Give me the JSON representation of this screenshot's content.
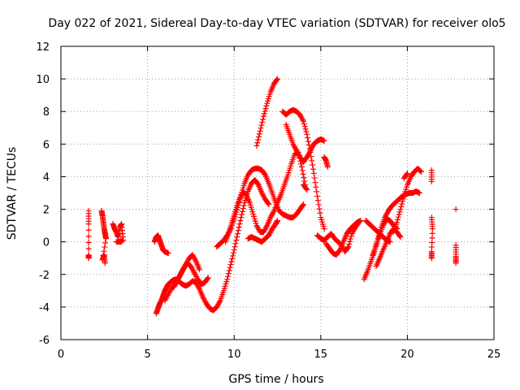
{
  "chart_data": {
    "type": "scatter",
    "title": "Day 022 of 2021, Sidereal Day-to-day VTEC variation (SDTVAR) for receiver olo5",
    "xlabel": "GPS time / hours",
    "ylabel": "SDTVAR / TECUs",
    "xlim": [
      0,
      25
    ],
    "ylim": [
      -6,
      12
    ],
    "x_ticks": [
      0,
      5,
      10,
      15,
      20,
      25
    ],
    "y_ticks": [
      -6,
      -4,
      -2,
      0,
      2,
      4,
      6,
      8,
      10,
      12
    ],
    "x_tick_labels": [
      "0",
      "5",
      "10",
      "15",
      "20",
      "25"
    ],
    "y_tick_labels": [
      "-6",
      "-4",
      "-2",
      "0",
      "2",
      "4",
      "6",
      "8",
      "10",
      "12"
    ],
    "grid": true,
    "marker": "+",
    "color": "#ff0000",
    "series": [
      {
        "name": "s1",
        "x": [
          1.6,
          1.6,
          1.6,
          1.6
        ],
        "y": [
          1.9,
          1.1,
          -0.8,
          -1.0
        ]
      },
      {
        "name": "s2",
        "x": [
          2.35,
          2.4,
          2.45,
          2.5,
          2.55,
          2.6,
          2.4,
          2.5,
          2.55
        ],
        "y": [
          1.9,
          1.6,
          1.2,
          0.8,
          0.5,
          0.2,
          -1.1,
          -0.8,
          -1.3
        ]
      },
      {
        "name": "s3",
        "x": [
          3.0,
          3.1,
          3.2,
          3.3,
          3.4,
          3.5,
          3.6,
          3.2,
          3.5
        ],
        "y": [
          1.1,
          0.8,
          0.6,
          0.3,
          0.9,
          1.1,
          0.1,
          0.0,
          0.0
        ]
      },
      {
        "name": "s4",
        "x": [
          5.4,
          5.5,
          5.6,
          5.7,
          5.8,
          5.9,
          6.0,
          6.2
        ],
        "y": [
          0.0,
          0.3,
          0.4,
          0.1,
          -0.2,
          -0.5,
          -0.6,
          -0.7
        ]
      },
      {
        "name": "s5",
        "x": [
          5.5,
          5.6,
          5.7,
          5.8,
          5.9,
          6.0,
          6.1,
          6.2,
          6.4,
          6.6,
          6.8,
          7.0,
          7.2,
          7.4,
          7.6,
          7.8,
          8.0,
          8.2,
          8.4,
          8.6,
          8.8,
          9.0,
          9.2,
          9.4,
          9.6,
          9.8,
          10.0,
          10.2,
          10.4,
          10.6,
          10.8,
          11.0,
          11.2,
          11.4,
          11.6,
          11.8,
          12.0
        ],
        "y": [
          -4.4,
          -4.1,
          -3.8,
          -3.6,
          -3.3,
          -3.0,
          -2.8,
          -2.6,
          -2.4,
          -2.3,
          -2.4,
          -2.6,
          -2.7,
          -2.6,
          -2.4,
          -2.5,
          -2.9,
          -3.4,
          -3.8,
          -4.1,
          -4.2,
          -4.0,
          -3.6,
          -3.0,
          -2.3,
          -1.4,
          -0.5,
          0.5,
          1.5,
          2.4,
          3.1,
          3.6,
          3.8,
          3.5,
          3.0,
          2.6,
          2.3
        ]
      },
      {
        "name": "s6",
        "x": [
          6.0,
          6.2,
          6.4,
          6.6,
          6.8,
          7.0,
          7.2,
          7.4,
          7.6,
          7.8,
          8.0
        ],
        "y": [
          -3.6,
          -3.2,
          -2.8,
          -2.6,
          -2.2,
          -1.8,
          -1.4,
          -1.0,
          -0.8,
          -1.2,
          -1.7
        ]
      },
      {
        "name": "s7",
        "x": [
          6.5,
          6.7,
          6.9,
          7.1,
          7.3,
          7.5,
          7.7,
          7.9,
          8.1,
          8.3,
          8.5
        ],
        "y": [
          -2.8,
          -2.4,
          -2.0,
          -1.6,
          -1.3,
          -1.5,
          -1.9,
          -2.3,
          -2.6,
          -2.5,
          -2.2
        ]
      },
      {
        "name": "s8",
        "x": [
          9.0,
          9.2,
          9.4,
          9.6,
          9.8,
          10.0,
          10.2,
          10.4,
          10.6,
          10.8,
          11.0,
          11.2,
          11.4,
          11.6,
          11.8,
          12.0,
          12.2,
          12.4,
          12.6,
          12.8,
          13.0,
          13.2,
          13.4,
          13.6,
          13.8,
          14.0
        ],
        "y": [
          -0.3,
          -0.1,
          0.1,
          0.4,
          0.8,
          1.4,
          2.1,
          2.9,
          3.6,
          4.1,
          4.4,
          4.5,
          4.5,
          4.4,
          4.1,
          3.6,
          3.0,
          2.4,
          1.9,
          1.7,
          1.6,
          1.5,
          1.5,
          1.7,
          2.0,
          2.3
        ]
      },
      {
        "name": "s9",
        "x": [
          9.5,
          9.7,
          9.9,
          10.1,
          10.3,
          10.5,
          10.7,
          10.9,
          11.1,
          11.3,
          11.5,
          11.7,
          11.9,
          12.1,
          12.3,
          12.5,
          12.7,
          12.9,
          13.1,
          13.3,
          13.5,
          13.7,
          13.9,
          14.1
        ],
        "y": [
          0.0,
          0.6,
          1.3,
          2.0,
          2.6,
          3.0,
          2.9,
          2.4,
          1.7,
          1.0,
          0.6,
          0.6,
          1.0,
          1.5,
          1.9,
          2.4,
          2.9,
          3.5,
          4.1,
          4.8,
          5.4,
          5.5,
          4.6,
          3.5
        ]
      },
      {
        "name": "s10",
        "x": [
          10.8,
          11.0,
          11.2,
          11.4,
          11.6,
          11.8,
          12.0,
          12.2,
          12.4,
          12.5
        ],
        "y": [
          0.2,
          0.3,
          0.2,
          0.1,
          0.0,
          0.2,
          0.4,
          0.8,
          1.1,
          1.3
        ]
      },
      {
        "name": "s11",
        "x": [
          11.3,
          11.5,
          11.7,
          11.9,
          12.1,
          12.3,
          12.5
        ],
        "y": [
          5.9,
          6.8,
          7.7,
          8.5,
          9.2,
          9.7,
          10.0
        ]
      },
      {
        "name": "s12",
        "x": [
          12.8,
          13.0,
          13.2,
          13.4,
          13.6,
          13.8,
          14.0,
          14.2,
          14.4,
          14.6,
          14.8,
          15.0,
          15.2
        ],
        "y": [
          8.0,
          7.8,
          8.0,
          8.1,
          8.0,
          7.8,
          7.4,
          6.6,
          5.5,
          4.2,
          2.8,
          1.5,
          0.8
        ]
      },
      {
        "name": "s13",
        "x": [
          13.0,
          13.2,
          13.4,
          13.6,
          13.8,
          14.0,
          14.2,
          14.4,
          14.6,
          14.8,
          15.0,
          15.2
        ],
        "y": [
          7.2,
          6.6,
          6.0,
          5.6,
          5.2,
          4.9,
          5.2,
          5.6,
          6.0,
          6.2,
          6.3,
          6.2
        ]
      },
      {
        "name": "s14",
        "x": [
          14.0,
          14.2
        ],
        "y": [
          3.5,
          3.2
        ]
      },
      {
        "name": "s15",
        "x": [
          15.2,
          15.3,
          15.4
        ],
        "y": [
          5.2,
          5.0,
          4.6
        ]
      },
      {
        "name": "s16",
        "x": [
          14.8,
          15.0,
          15.2,
          15.4,
          15.6,
          15.8,
          16.0,
          16.2,
          16.4,
          16.6,
          16.8,
          17.0,
          17.2
        ],
        "y": [
          0.4,
          0.2,
          0.1,
          0.3,
          0.5,
          0.2,
          0.0,
          -0.2,
          -0.6,
          -0.3,
          0.5,
          0.9,
          1.2
        ]
      },
      {
        "name": "s17",
        "x": [
          15.3,
          15.5,
          15.7,
          15.9,
          16.1,
          16.3,
          16.5,
          16.7,
          16.9,
          17.1,
          17.3
        ],
        "y": [
          -0.1,
          -0.4,
          -0.7,
          -0.8,
          -0.5,
          0.0,
          0.5,
          0.8,
          1.0,
          1.2,
          1.3
        ]
      },
      {
        "name": "s18",
        "x": [
          17.5,
          17.7,
          17.9,
          18.1,
          18.3,
          18.5,
          18.7,
          18.9,
          19.1,
          19.3,
          19.5,
          19.7,
          19.9,
          20.1,
          20.3,
          20.5,
          20.7
        ],
        "y": [
          -2.3,
          -1.8,
          -1.2,
          -0.6,
          0.2,
          0.9,
          1.5,
          1.9,
          2.2,
          2.4,
          2.6,
          2.8,
          2.9,
          3.0,
          3.0,
          3.1,
          3.0
        ]
      },
      {
        "name": "s19",
        "x": [
          17.6,
          17.8,
          18.0,
          18.2,
          18.4,
          18.6,
          18.8,
          19.0
        ],
        "y": [
          1.3,
          1.1,
          0.9,
          0.7,
          0.5,
          0.3,
          0.1,
          0.0
        ]
      },
      {
        "name": "s20",
        "x": [
          18.0,
          18.2,
          18.4,
          18.6,
          18.8,
          19.0,
          19.2,
          19.4
        ],
        "y": [
          -0.8,
          -0.2,
          0.4,
          1.0,
          1.4,
          1.3,
          1.0,
          0.8
        ]
      },
      {
        "name": "s21",
        "x": [
          19.2,
          19.4,
          19.6,
          19.8,
          20.0,
          20.2,
          20.4,
          20.6,
          20.8
        ],
        "y": [
          0.6,
          1.2,
          2.0,
          2.8,
          3.5,
          4.0,
          4.3,
          4.5,
          4.3
        ]
      },
      {
        "name": "s22",
        "x": [
          18.2,
          18.4,
          18.6,
          18.8,
          19.0,
          19.2,
          19.4,
          19.6
        ],
        "y": [
          -1.5,
          -1.0,
          -0.5,
          0.0,
          0.5,
          0.8,
          0.6,
          0.3
        ]
      },
      {
        "name": "s23",
        "x": [
          19.8,
          20.0
        ],
        "y": [
          3.9,
          4.2
        ]
      },
      {
        "name": "s24",
        "x": [
          21.4,
          21.4,
          21.4,
          21.45,
          21.4,
          21.4
        ],
        "y": [
          4.4,
          3.7,
          1.5,
          0.8,
          -0.6,
          -1.0
        ]
      },
      {
        "name": "s25",
        "x": [
          22.8,
          22.8,
          22.8,
          22.8
        ],
        "y": [
          2.0,
          -0.2,
          -0.9,
          -1.3
        ]
      }
    ]
  }
}
